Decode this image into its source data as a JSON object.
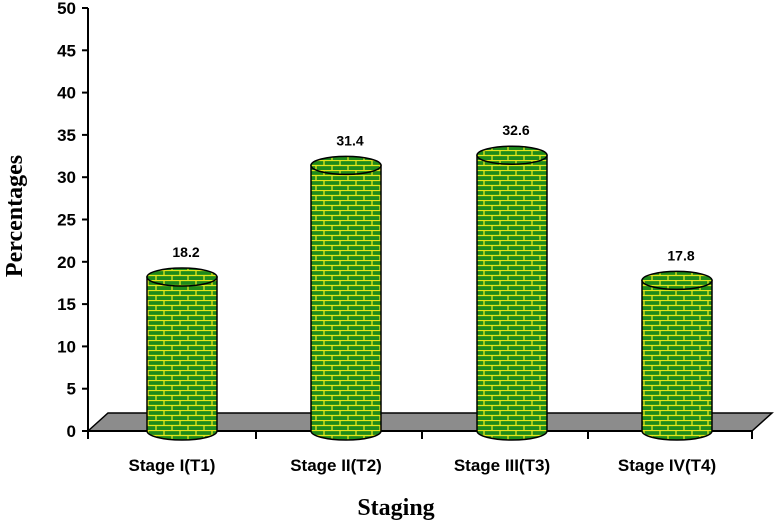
{
  "chart_data": {
    "type": "bar",
    "style": "3d-cylinder",
    "categories": [
      "Stage I(T1)",
      "Stage II(T2)",
      "Stage III(T3)",
      "Stage IV(T4)"
    ],
    "values": [
      18.2,
      31.4,
      32.6,
      17.8
    ],
    "data_labels": [
      "18.2",
      "31.4",
      "32.6",
      "17.8"
    ],
    "xlabel": "Staging",
    "ylabel": "Percentages",
    "ylim": [
      0,
      50
    ],
    "yticks": [
      0,
      5,
      10,
      15,
      20,
      25,
      30,
      35,
      40,
      45,
      50
    ],
    "grid": false,
    "legend": "none",
    "colors": {
      "bar_fill": "#1f8a1a",
      "brick_lines": "#e6e61a",
      "floor": "#8c8c8c",
      "axis": "#000000"
    }
  }
}
